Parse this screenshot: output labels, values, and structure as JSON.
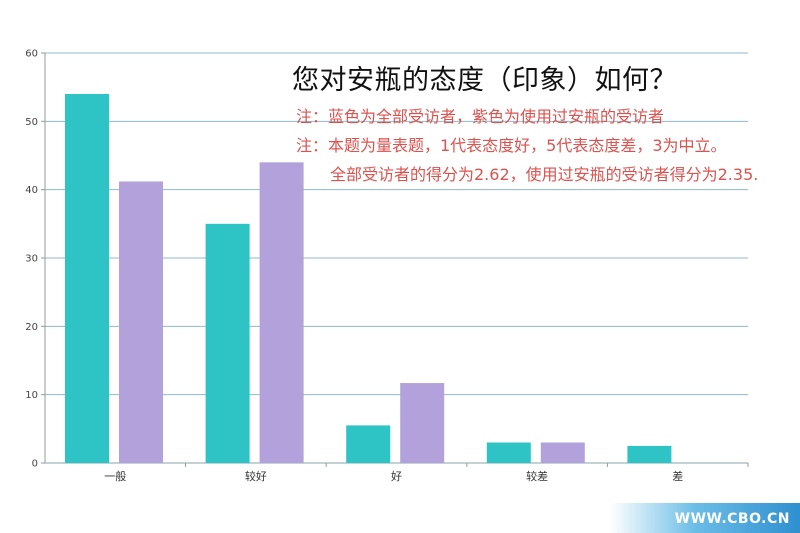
{
  "chart_data": {
    "type": "bar",
    "title": "您对安瓶的态度（印象）如何？",
    "notes": [
      "注：蓝色为全部受访者，紫色为使用过安瓶的受访者",
      "注：本题为量表题，1代表态度好，5代表态度差，3为中立。",
      "全部受访者的得分为2.62，使用过安瓶的受访者得分为2.35."
    ],
    "categories": [
      "一般",
      "较好",
      "好",
      "较差",
      "差"
    ],
    "series": [
      {
        "values": [
          54,
          35,
          5.5,
          3,
          2.5
        ],
        "color": "#2ec4c6"
      },
      {
        "values": [
          41.2,
          44,
          11.7,
          3,
          0
        ],
        "color": "#b3a1dc"
      }
    ],
    "ylim": [
      0,
      60
    ],
    "yticks": [
      0,
      10,
      20,
      30,
      40,
      50,
      60
    ],
    "xlabel": "",
    "ylabel": "",
    "grid": true
  },
  "watermark": "WWW.CBO.CN"
}
